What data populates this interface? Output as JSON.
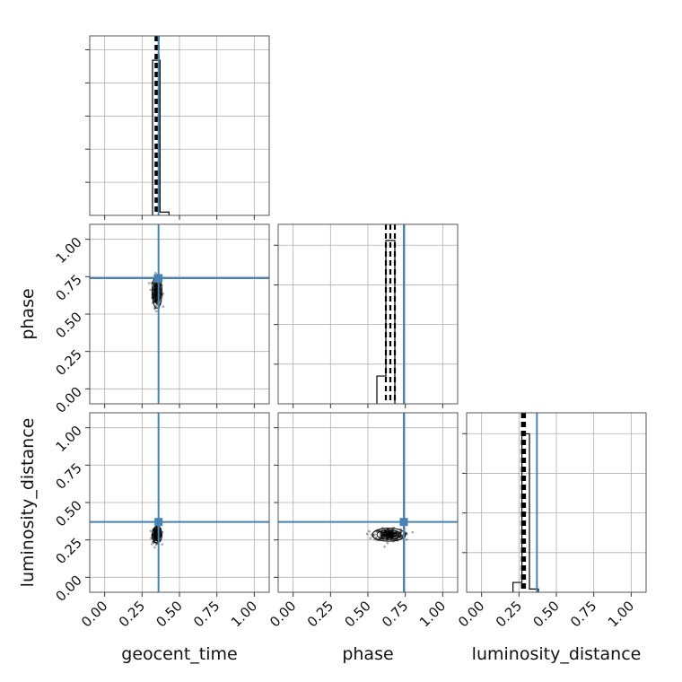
{
  "chart_data": {
    "type": "corner",
    "parameters": [
      "geocent_time",
      "phase",
      "luminosity_distance"
    ],
    "axis_range": [
      -0.1,
      1.1
    ],
    "tick_labels": [
      "0.00",
      "0.25",
      "0.50",
      "0.75",
      "1.00"
    ],
    "tick_values": [
      0.0,
      0.25,
      0.5,
      0.75,
      1.0
    ],
    "grid": true,
    "truth_color": "#4682b4",
    "truths": {
      "geocent_time": 0.36,
      "phase": 0.74,
      "luminosity_distance": 0.37
    },
    "histograms": {
      "geocent_time": {
        "bins": [
          [
            0.32,
            0.37,
            0.95
          ],
          [
            0.37,
            0.43,
            0.02
          ]
        ],
        "quantiles": [
          0.34,
          0.35,
          0.36
        ]
      },
      "phase": {
        "bins": [
          [
            0.56,
            0.62,
            0.17
          ],
          [
            0.62,
            0.68,
            1.0
          ]
        ],
        "quantiles": [
          0.62,
          0.65,
          0.68
        ]
      },
      "luminosity_distance": {
        "bins": [
          [
            0.21,
            0.27,
            0.06
          ],
          [
            0.27,
            0.32,
            0.97
          ],
          [
            0.32,
            0.38,
            0.02
          ]
        ],
        "quantiles": [
          0.27,
          0.28,
          0.29
        ]
      }
    },
    "scatter_panels": [
      {
        "x": "geocent_time",
        "y": "phase",
        "center": [
          0.35,
          0.65
        ],
        "spread": [
          0.015,
          0.05
        ]
      },
      {
        "x": "geocent_time",
        "y": "luminosity_distance",
        "center": [
          0.35,
          0.285
        ],
        "spread": [
          0.015,
          0.025
        ]
      },
      {
        "x": "phase",
        "y": "luminosity_distance",
        "center": [
          0.64,
          0.285
        ],
        "spread": [
          0.05,
          0.02
        ]
      }
    ]
  }
}
